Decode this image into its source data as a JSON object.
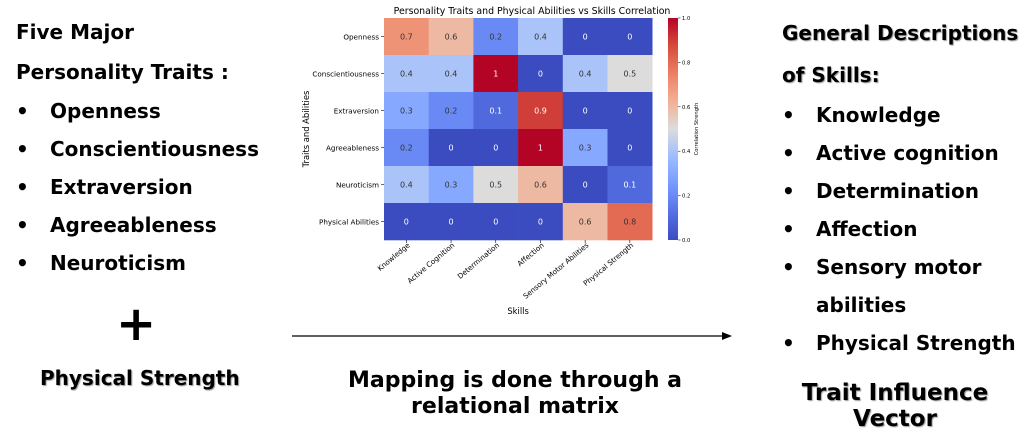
{
  "left": {
    "heading_line1": "Five Major",
    "heading_line2": "Personality Traits :",
    "items": [
      "Openness",
      "Conscientiousness",
      "Extraversion",
      "Agreeableness",
      "Neuroticism"
    ],
    "plus": "+",
    "physical": "Physical Strength"
  },
  "right": {
    "heading_line1": "General Descriptions",
    "heading_line2": "of Skills:",
    "items": [
      "Knowledge",
      "Active cognition",
      "Determination",
      "Affection",
      "Sensory motor",
      "abilities",
      "Physical Strength"
    ],
    "footer_line1": "Trait Influence",
    "footer_line2": "Vector"
  },
  "caption": {
    "line1": "Mapping is done through a",
    "line2": "relational matrix"
  },
  "chart_data": {
    "type": "heatmap",
    "title": "Personality Traits and Physical Abilities vs Skills Correlation",
    "xlabel": "Skills",
    "ylabel": "Traits and Abilities",
    "colorbar_label": "Correlation Strength",
    "colorbar_ticks": [
      "0.0",
      "0.2",
      "0.4",
      "0.6",
      "0.8",
      "1.0"
    ],
    "rows": [
      "Openness",
      "Conscientiousness",
      "Extraversion",
      "Agreeableness",
      "Neuroticism",
      "Physical Abilities"
    ],
    "columns": [
      "Knowledge",
      "Active Cognition",
      "Determination",
      "Affection",
      "Sensory Motor Abilities",
      "Physical Strength"
    ],
    "values": [
      [
        0.7,
        0.6,
        0.2,
        0.4,
        0,
        0
      ],
      [
        0.4,
        0.4,
        1,
        0,
        0.4,
        0.5
      ],
      [
        0.3,
        0.2,
        0.1,
        0.9,
        0,
        0
      ],
      [
        0.2,
        0,
        0,
        1,
        0.3,
        0
      ],
      [
        0.4,
        0.3,
        0.5,
        0.6,
        0,
        0.1
      ],
      [
        0,
        0,
        0,
        0,
        0.6,
        0.8
      ]
    ],
    "vmin": 0,
    "vmax": 1,
    "colormap": "coolwarm"
  }
}
